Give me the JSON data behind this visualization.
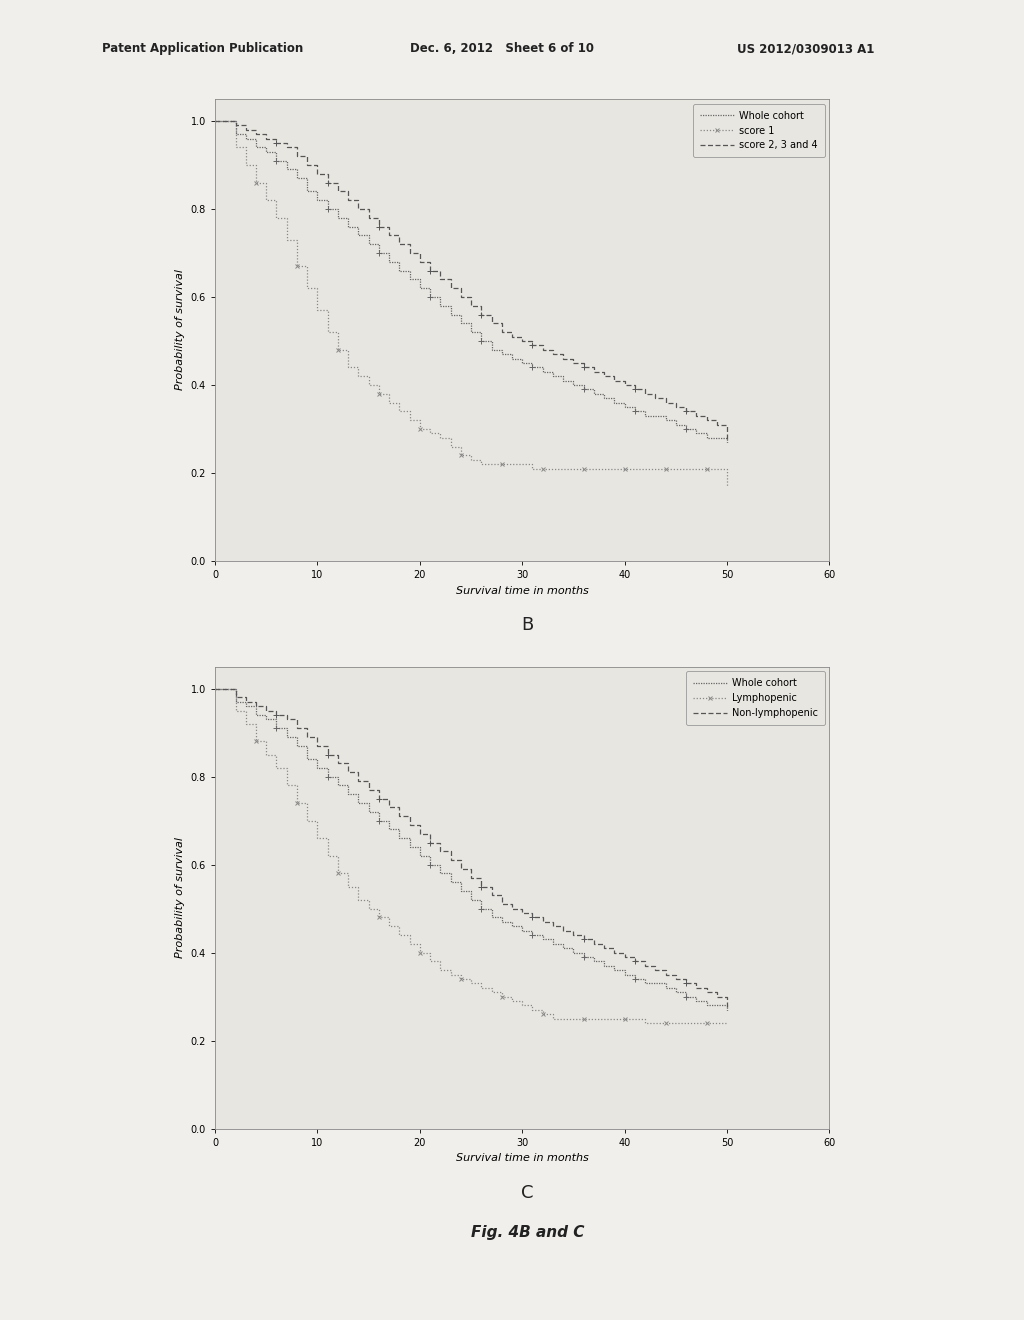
{
  "header_left": "Patent Application Publication",
  "header_mid": "Dec. 6, 2012   Sheet 6 of 10",
  "header_right": "US 2012/0309013 A1",
  "footer_text": "Fig. 4B and C",
  "label_B": "B",
  "label_C": "C",
  "bg_color": "#f0efeb",
  "plot_bg_color": "#e8e6e0",
  "plot_B": {
    "xlabel": "Survival time in months",
    "ylabel": "Probability of survival",
    "xlim": [
      0,
      60
    ],
    "ylim": [
      0.0,
      1.05
    ],
    "yticks": [
      0.0,
      0.2,
      0.4,
      0.6,
      0.8,
      1.0
    ],
    "ytick_labels": [
      "0.0",
      "0.2",
      "0.4",
      "0.6",
      "0.8",
      "1.0"
    ],
    "xticks": [
      0,
      10,
      20,
      30,
      40,
      50,
      60
    ],
    "legend_labels": [
      "Whole cohort",
      "score 1",
      "score 2, 3 and 4"
    ],
    "whole_cohort_x": [
      0,
      2,
      3,
      4,
      5,
      6,
      7,
      8,
      9,
      10,
      11,
      12,
      13,
      14,
      15,
      16,
      17,
      18,
      19,
      20,
      21,
      22,
      23,
      24,
      25,
      26,
      27,
      28,
      29,
      30,
      31,
      32,
      33,
      34,
      35,
      36,
      37,
      38,
      39,
      40,
      41,
      42,
      43,
      44,
      45,
      46,
      47,
      48,
      49,
      50
    ],
    "whole_cohort_y": [
      1.0,
      0.97,
      0.96,
      0.94,
      0.93,
      0.91,
      0.89,
      0.87,
      0.84,
      0.82,
      0.8,
      0.78,
      0.76,
      0.74,
      0.72,
      0.7,
      0.68,
      0.66,
      0.64,
      0.62,
      0.6,
      0.58,
      0.56,
      0.54,
      0.52,
      0.5,
      0.48,
      0.47,
      0.46,
      0.45,
      0.44,
      0.43,
      0.42,
      0.41,
      0.4,
      0.39,
      0.38,
      0.37,
      0.36,
      0.35,
      0.34,
      0.33,
      0.33,
      0.32,
      0.31,
      0.3,
      0.29,
      0.28,
      0.28,
      0.27
    ],
    "score1_x": [
      0,
      2,
      3,
      4,
      5,
      6,
      7,
      8,
      9,
      10,
      11,
      12,
      13,
      14,
      15,
      16,
      17,
      18,
      19,
      20,
      21,
      22,
      23,
      24,
      25,
      26,
      27,
      28,
      29,
      30,
      31,
      32,
      33,
      34,
      35,
      36,
      37,
      38,
      39,
      40,
      41,
      42,
      43,
      44,
      45,
      46,
      47,
      48,
      49,
      50
    ],
    "score1_y": [
      1.0,
      0.94,
      0.9,
      0.86,
      0.82,
      0.78,
      0.73,
      0.67,
      0.62,
      0.57,
      0.52,
      0.48,
      0.44,
      0.42,
      0.4,
      0.38,
      0.36,
      0.34,
      0.32,
      0.3,
      0.29,
      0.28,
      0.26,
      0.24,
      0.23,
      0.22,
      0.22,
      0.22,
      0.22,
      0.22,
      0.21,
      0.21,
      0.21,
      0.21,
      0.21,
      0.21,
      0.21,
      0.21,
      0.21,
      0.21,
      0.21,
      0.21,
      0.21,
      0.21,
      0.21,
      0.21,
      0.21,
      0.21,
      0.21,
      0.17
    ],
    "score234_x": [
      0,
      2,
      3,
      4,
      5,
      6,
      7,
      8,
      9,
      10,
      11,
      12,
      13,
      14,
      15,
      16,
      17,
      18,
      19,
      20,
      21,
      22,
      23,
      24,
      25,
      26,
      27,
      28,
      29,
      30,
      31,
      32,
      33,
      34,
      35,
      36,
      37,
      38,
      39,
      40,
      41,
      42,
      43,
      44,
      45,
      46,
      47,
      48,
      49,
      50
    ],
    "score234_y": [
      1.0,
      0.99,
      0.98,
      0.97,
      0.96,
      0.95,
      0.94,
      0.92,
      0.9,
      0.88,
      0.86,
      0.84,
      0.82,
      0.8,
      0.78,
      0.76,
      0.74,
      0.72,
      0.7,
      0.68,
      0.66,
      0.64,
      0.62,
      0.6,
      0.58,
      0.56,
      0.54,
      0.52,
      0.51,
      0.5,
      0.49,
      0.48,
      0.47,
      0.46,
      0.45,
      0.44,
      0.43,
      0.42,
      0.41,
      0.4,
      0.39,
      0.38,
      0.37,
      0.36,
      0.35,
      0.34,
      0.33,
      0.32,
      0.31,
      0.27
    ]
  },
  "plot_C": {
    "xlabel": "Survival time in months",
    "ylabel": "Probability of survival",
    "xlim": [
      0,
      60
    ],
    "ylim": [
      0.0,
      1.05
    ],
    "yticks": [
      0.0,
      0.2,
      0.4,
      0.6,
      0.8,
      1.0
    ],
    "ytick_labels": [
      "0.0",
      "0.2",
      "0.4",
      "0.6",
      "0.8",
      "1.0"
    ],
    "xticks": [
      0,
      10,
      20,
      30,
      40,
      50,
      60
    ],
    "legend_labels": [
      "Whole cohort",
      "Lymphopenic",
      "Non-lymphopenic"
    ],
    "whole_cohort_x": [
      0,
      2,
      3,
      4,
      5,
      6,
      7,
      8,
      9,
      10,
      11,
      12,
      13,
      14,
      15,
      16,
      17,
      18,
      19,
      20,
      21,
      22,
      23,
      24,
      25,
      26,
      27,
      28,
      29,
      30,
      31,
      32,
      33,
      34,
      35,
      36,
      37,
      38,
      39,
      40,
      41,
      42,
      43,
      44,
      45,
      46,
      47,
      48,
      49,
      50
    ],
    "whole_cohort_y": [
      1.0,
      0.97,
      0.96,
      0.94,
      0.93,
      0.91,
      0.89,
      0.87,
      0.84,
      0.82,
      0.8,
      0.78,
      0.76,
      0.74,
      0.72,
      0.7,
      0.68,
      0.66,
      0.64,
      0.62,
      0.6,
      0.58,
      0.56,
      0.54,
      0.52,
      0.5,
      0.48,
      0.47,
      0.46,
      0.45,
      0.44,
      0.43,
      0.42,
      0.41,
      0.4,
      0.39,
      0.38,
      0.37,
      0.36,
      0.35,
      0.34,
      0.33,
      0.33,
      0.32,
      0.31,
      0.3,
      0.29,
      0.28,
      0.28,
      0.27
    ],
    "lymphopenic_x": [
      0,
      2,
      3,
      4,
      5,
      6,
      7,
      8,
      9,
      10,
      11,
      12,
      13,
      14,
      15,
      16,
      17,
      18,
      19,
      20,
      21,
      22,
      23,
      24,
      25,
      26,
      27,
      28,
      29,
      30,
      31,
      32,
      33,
      34,
      35,
      36,
      37,
      38,
      39,
      40,
      41,
      42,
      43,
      44,
      45,
      46,
      47,
      48,
      49,
      50
    ],
    "lymphopenic_y": [
      1.0,
      0.95,
      0.92,
      0.88,
      0.85,
      0.82,
      0.78,
      0.74,
      0.7,
      0.66,
      0.62,
      0.58,
      0.55,
      0.52,
      0.5,
      0.48,
      0.46,
      0.44,
      0.42,
      0.4,
      0.38,
      0.36,
      0.35,
      0.34,
      0.33,
      0.32,
      0.31,
      0.3,
      0.29,
      0.28,
      0.27,
      0.26,
      0.25,
      0.25,
      0.25,
      0.25,
      0.25,
      0.25,
      0.25,
      0.25,
      0.25,
      0.24,
      0.24,
      0.24,
      0.24,
      0.24,
      0.24,
      0.24,
      0.24,
      0.24
    ],
    "non_lymphopenic_x": [
      0,
      2,
      3,
      4,
      5,
      6,
      7,
      8,
      9,
      10,
      11,
      12,
      13,
      14,
      15,
      16,
      17,
      18,
      19,
      20,
      21,
      22,
      23,
      24,
      25,
      26,
      27,
      28,
      29,
      30,
      31,
      32,
      33,
      34,
      35,
      36,
      37,
      38,
      39,
      40,
      41,
      42,
      43,
      44,
      45,
      46,
      47,
      48,
      49,
      50
    ],
    "non_lymphopenic_y": [
      1.0,
      0.98,
      0.97,
      0.96,
      0.95,
      0.94,
      0.93,
      0.91,
      0.89,
      0.87,
      0.85,
      0.83,
      0.81,
      0.79,
      0.77,
      0.75,
      0.73,
      0.71,
      0.69,
      0.67,
      0.65,
      0.63,
      0.61,
      0.59,
      0.57,
      0.55,
      0.53,
      0.51,
      0.5,
      0.49,
      0.48,
      0.47,
      0.46,
      0.45,
      0.44,
      0.43,
      0.42,
      0.41,
      0.4,
      0.39,
      0.38,
      0.37,
      0.36,
      0.35,
      0.34,
      0.33,
      0.32,
      0.31,
      0.3,
      0.27
    ]
  }
}
